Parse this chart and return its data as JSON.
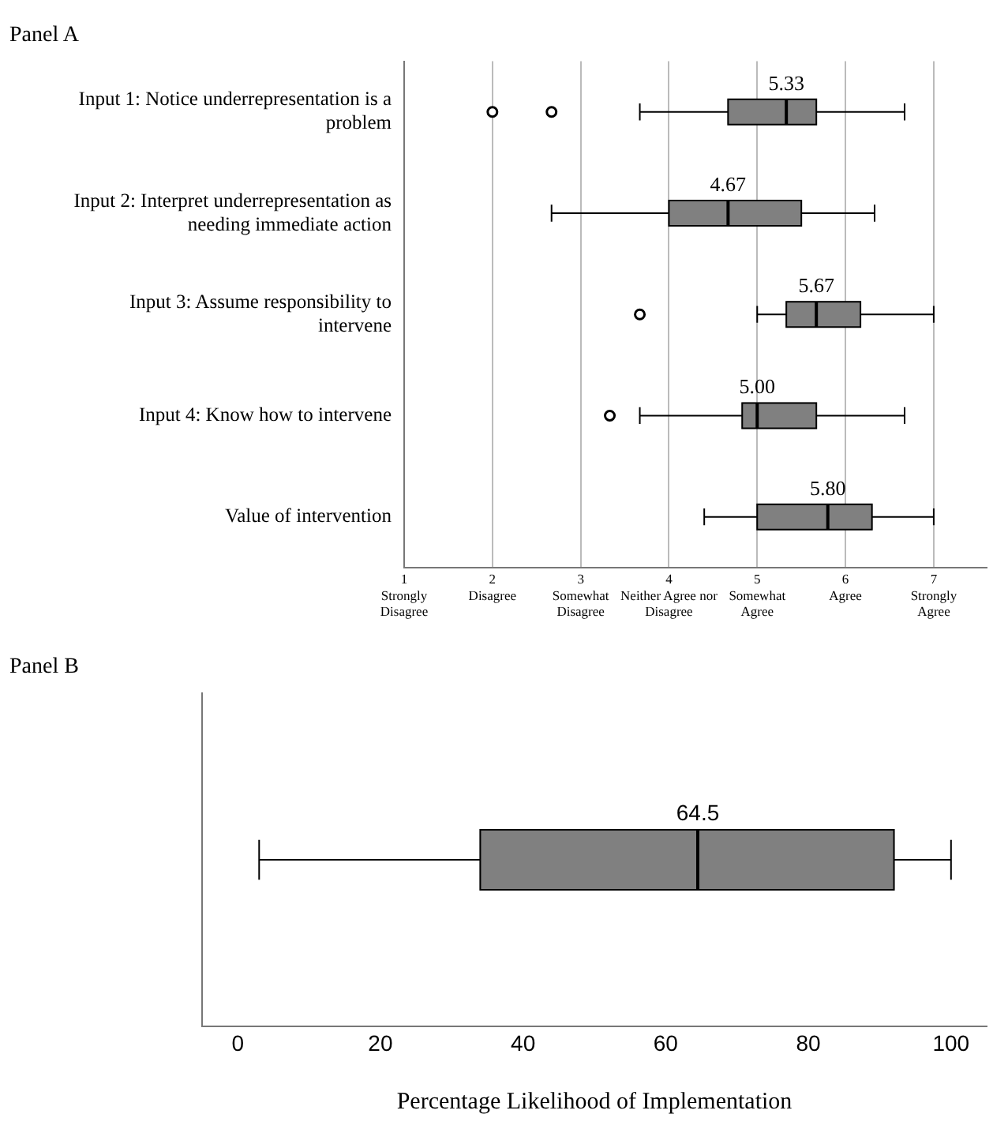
{
  "chart_data": [
    {
      "type": "box",
      "title": "Panel A",
      "orientation": "horizontal",
      "color": "#808080",
      "grid": "x",
      "categories": [
        "Input 1: Notice underrepresentation is a problem",
        "Input 2: Interpret underrepresentation as needing immediate action",
        "Input 3: Assume responsibility to intervene",
        "Input 4: Know how to intervene",
        "Value of intervention"
      ],
      "boxes": [
        {
          "low": 3.67,
          "q1": 4.67,
          "median": 5.33,
          "q3": 5.67,
          "high": 6.67,
          "outliers": [
            2.0,
            2.67
          ]
        },
        {
          "low": 2.67,
          "q1": 4.0,
          "median": 4.67,
          "q3": 5.5,
          "high": 6.33
        },
        {
          "low": 5.0,
          "q1": 5.33,
          "median": 5.67,
          "q3": 6.17,
          "high": 7.0,
          "outliers": [
            3.67
          ]
        },
        {
          "low": 3.67,
          "q1": 4.83,
          "median": 5.0,
          "q3": 5.67,
          "high": 6.67,
          "outliers": [
            3.33
          ]
        },
        {
          "low": 4.4,
          "q1": 5.0,
          "median": 5.8,
          "q3": 6.3,
          "high": 7.0
        }
      ],
      "value_labels": [
        "5.33",
        "4.67",
        "5.67",
        "5.00",
        "5.80"
      ],
      "xlim": [
        1,
        7.6
      ],
      "xticks": [
        {
          "value": 1,
          "label": "1\nStrongly\nDisagree"
        },
        {
          "value": 2,
          "label": "2\nDisagree"
        },
        {
          "value": 3,
          "label": "3\nSomewhat\nDisagree"
        },
        {
          "value": 4,
          "label": "4\nNeither Agree nor\nDisagree"
        },
        {
          "value": 5,
          "label": "5\nSomewhat\nAgree"
        },
        {
          "value": 6,
          "label": "6\nAgree"
        },
        {
          "value": 7,
          "label": "7\nStrongly\nAgree"
        }
      ]
    },
    {
      "type": "box",
      "title": "Panel B",
      "orientation": "horizontal",
      "color": "#808080",
      "xlabel": "Percentage Likelihood of Implementation",
      "categories": [
        null
      ],
      "boxes": [
        {
          "low": 3,
          "q1": 34,
          "median": 64.5,
          "q3": 92,
          "high": 100
        }
      ],
      "value_labels": [
        "64.5"
      ],
      "xlim": [
        -5,
        105
      ],
      "xticks": [
        0,
        20,
        40,
        60,
        80,
        100
      ]
    }
  ]
}
